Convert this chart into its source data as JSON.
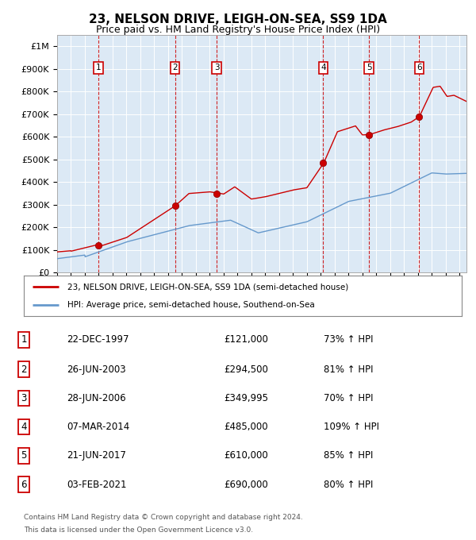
{
  "title": "23, NELSON DRIVE, LEIGH-ON-SEA, SS9 1DA",
  "subtitle": "Price paid vs. HM Land Registry's House Price Index (HPI)",
  "title_fontsize": 11,
  "subtitle_fontsize": 9,
  "plot_bg_color": "#dce9f5",
  "fig_bg_color": "#ffffff",
  "sale_dates_num": [
    1997.97,
    2003.49,
    2006.49,
    2014.18,
    2017.47,
    2021.09
  ],
  "sale_prices": [
    121000,
    294500,
    349995,
    485000,
    610000,
    690000
  ],
  "sale_labels": [
    "1",
    "2",
    "3",
    "4",
    "5",
    "6"
  ],
  "sale_dates_str": [
    "22-DEC-1997",
    "26-JUN-2003",
    "28-JUN-2006",
    "07-MAR-2014",
    "21-JUN-2017",
    "03-FEB-2021"
  ],
  "sale_hpi_pct": [
    "73%",
    "81%",
    "70%",
    "109%",
    "85%",
    "80%"
  ],
  "hpi_color": "#6699cc",
  "price_color": "#cc0000",
  "vline_color": "#cc0000",
  "grid_color": "#ffffff",
  "ylim": [
    0,
    1050000
  ],
  "xlim_start": 1995.0,
  "xlim_end": 2024.5,
  "legend_label_price": "23, NELSON DRIVE, LEIGH-ON-SEA, SS9 1DA (semi-detached house)",
  "legend_label_hpi": "HPI: Average price, semi-detached house, Southend-on-Sea",
  "footer_line1": "Contains HM Land Registry data © Crown copyright and database right 2024.",
  "footer_line2": "This data is licensed under the Open Government Licence v3.0.",
  "yticks": [
    0,
    100000,
    200000,
    300000,
    400000,
    500000,
    600000,
    700000,
    800000,
    900000,
    1000000
  ],
  "ytick_labels": [
    "£0",
    "£100K",
    "£200K",
    "£300K",
    "£400K",
    "£500K",
    "£600K",
    "£700K",
    "£800K",
    "£900K",
    "£1M"
  ]
}
